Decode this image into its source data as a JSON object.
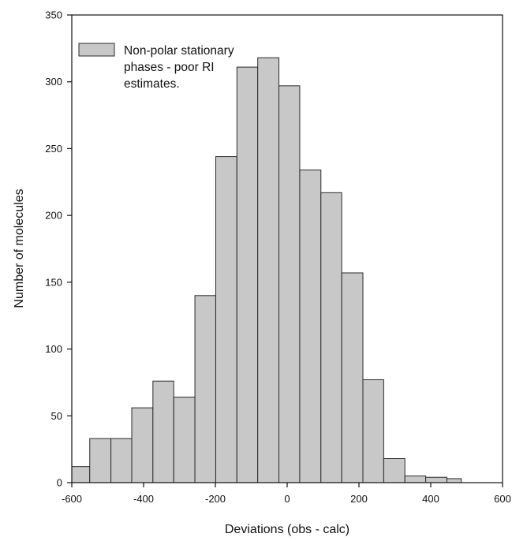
{
  "chart_data": {
    "type": "bar",
    "subtype": "histogram",
    "xlabel": "Deviations (obs - calc)",
    "ylabel": "Number of molecules",
    "xlim": [
      -600,
      600
    ],
    "ylim": [
      0,
      350
    ],
    "x_ticks": [
      -600,
      -400,
      -200,
      0,
      200,
      400,
      600
    ],
    "y_ticks": [
      0,
      50,
      100,
      150,
      200,
      250,
      300,
      350
    ],
    "x_tick_labels": [
      "-600",
      "-400",
      "-200",
      "0",
      "200",
      "400",
      "600"
    ],
    "y_tick_labels": [
      "0",
      "50",
      "100",
      "150",
      "200",
      "250",
      "300",
      "350"
    ],
    "grid": false,
    "legend": {
      "position": "top-left",
      "lines": [
        "Non-polar stationary",
        "phases - poor RI",
        "estimates."
      ]
    },
    "bins": [
      {
        "x0": -600,
        "x1": -550,
        "value": 12
      },
      {
        "x0": -550,
        "x1": -491,
        "value": 33
      },
      {
        "x0": -491,
        "x1": -433,
        "value": 33
      },
      {
        "x0": -433,
        "x1": -374,
        "value": 56
      },
      {
        "x0": -374,
        "x1": -316,
        "value": 76
      },
      {
        "x0": -316,
        "x1": -257,
        "value": 64
      },
      {
        "x0": -257,
        "x1": -199,
        "value": 140
      },
      {
        "x0": -199,
        "x1": -140,
        "value": 244
      },
      {
        "x0": -140,
        "x1": -82,
        "value": 311
      },
      {
        "x0": -82,
        "x1": -23,
        "value": 318
      },
      {
        "x0": -23,
        "x1": 35,
        "value": 297
      },
      {
        "x0": 35,
        "x1": 94,
        "value": 234
      },
      {
        "x0": 94,
        "x1": 152,
        "value": 217
      },
      {
        "x0": 152,
        "x1": 211,
        "value": 157
      },
      {
        "x0": 211,
        "x1": 269,
        "value": 77
      },
      {
        "x0": 269,
        "x1": 328,
        "value": 18
      },
      {
        "x0": 328,
        "x1": 386,
        "value": 5
      },
      {
        "x0": 386,
        "x1": 445,
        "value": 4
      },
      {
        "x0": 445,
        "x1": 485,
        "value": 3
      }
    ],
    "colors": {
      "bar_fill": "#c8c8c8",
      "bar_stroke": "#2a2a2a",
      "axis": "#111111"
    }
  }
}
